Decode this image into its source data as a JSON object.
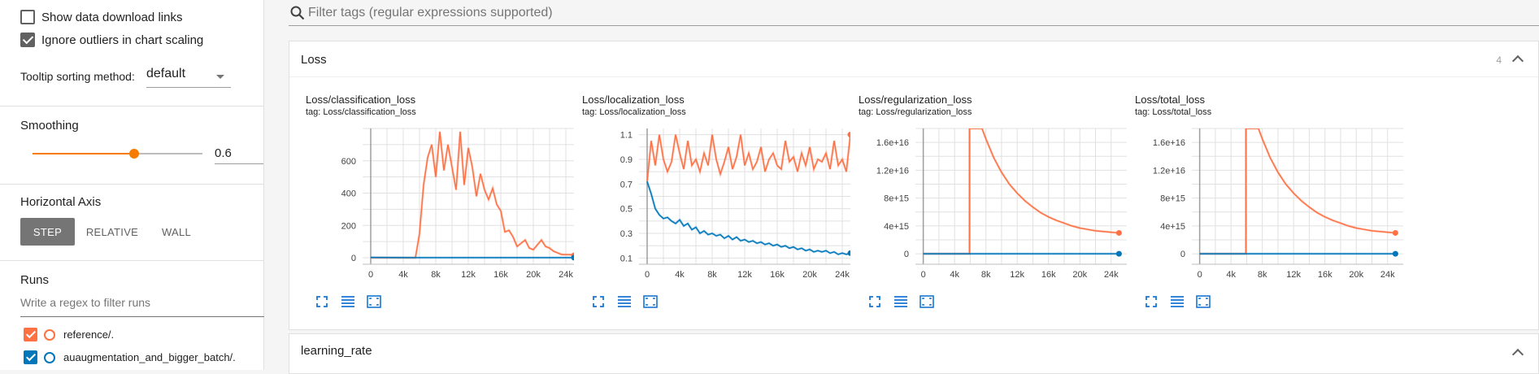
{
  "sidebar": {
    "show_download_links": "Show data download links",
    "ignore_outliers": "Ignore outliers in chart scaling",
    "tooltip_label": "Tooltip sorting method:",
    "tooltip_value": "default",
    "smoothing_title": "Smoothing",
    "smoothing_value": "0.6",
    "smoothing_fraction": 0.6,
    "axis_title": "Horizontal Axis",
    "axis_step": "STEP",
    "axis_relative": "RELATIVE",
    "axis_wall": "WALL",
    "runs_title": "Runs",
    "runs_filter_placeholder": "Write a regex to filter runs",
    "runs": [
      {
        "name": "reference/.",
        "color": "#ff7043"
      },
      {
        "name": "auaugmentation_and_bigger_batch/.",
        "color": "#0077bb"
      }
    ]
  },
  "search": {
    "placeholder": "Filter tags (regular expressions supported)"
  },
  "sections": [
    {
      "title": "Loss",
      "count": "4"
    },
    {
      "title": "learning_rate"
    }
  ],
  "charts": [
    {
      "title": "Loss/classification_loss",
      "tag": "tag: Loss/classification_loss"
    },
    {
      "title": "Loss/localization_loss",
      "tag": "tag: Loss/localization_loss"
    },
    {
      "title": "Loss/regularization_loss",
      "tag": "tag: Loss/regularization_loss"
    },
    {
      "title": "Loss/total_loss",
      "tag": "tag: Loss/total_loss"
    }
  ],
  "chart_data": [
    {
      "type": "line",
      "title": "Loss/classification_loss",
      "xticks": [
        "0",
        "4k",
        "8k",
        "12k",
        "16k",
        "20k",
        "24k"
      ],
      "yticks": [
        "0",
        "200",
        "400",
        "600"
      ],
      "xlim": [
        -1000,
        25000
      ],
      "ylim": [
        -40,
        800
      ],
      "series": [
        {
          "name": "reference/.",
          "color": "#ff7043",
          "x": [
            0,
            2000,
            4000,
            5500,
            6000,
            6500,
            7000,
            7500,
            8000,
            8500,
            9000,
            9500,
            10000,
            10500,
            11000,
            11500,
            12000,
            12500,
            13000,
            13500,
            14000,
            14500,
            15000,
            15500,
            16000,
            16500,
            17000,
            17500,
            18000,
            18500,
            19000,
            19500,
            20000,
            20500,
            21000,
            21500,
            22000,
            22500,
            23000,
            23500,
            24000,
            24500,
            25000
          ],
          "y": [
            0,
            0,
            0,
            0,
            150,
            450,
            620,
            700,
            500,
            780,
            540,
            700,
            560,
            420,
            780,
            450,
            680,
            560,
            380,
            520,
            420,
            360,
            430,
            330,
            290,
            160,
            170,
            130,
            70,
            90,
            110,
            60,
            50,
            80,
            110,
            70,
            60,
            40,
            30,
            20,
            20,
            20,
            15
          ]
        },
        {
          "name": "auaugmentation_and_bigger_batch/.",
          "color": "#0077bb",
          "x": [
            0,
            5000,
            10000,
            15000,
            20000,
            25000
          ],
          "y": [
            2,
            1,
            1,
            1,
            1,
            1
          ]
        }
      ]
    },
    {
      "type": "line",
      "title": "Loss/localization_loss",
      "xticks": [
        "0",
        "4k",
        "8k",
        "12k",
        "16k",
        "20k",
        "24k"
      ],
      "yticks": [
        "0.1",
        "0.3",
        "0.5",
        "0.7",
        "0.9",
        "1.1"
      ],
      "xlim": [
        -1000,
        25000
      ],
      "ylim": [
        0.05,
        1.15
      ],
      "series": [
        {
          "name": "reference/.",
          "color": "#ff7043",
          "x": [
            0,
            500,
            1000,
            1500,
            2000,
            2500,
            3000,
            3500,
            4000,
            4500,
            5000,
            5500,
            6000,
            6500,
            7000,
            7500,
            8000,
            8500,
            9000,
            9500,
            10000,
            10500,
            11000,
            11500,
            12000,
            12500,
            13000,
            13500,
            14000,
            14500,
            15000,
            15500,
            16000,
            16500,
            17000,
            17500,
            18000,
            18500,
            19000,
            19500,
            20000,
            20500,
            21000,
            21500,
            22000,
            22500,
            23000,
            23500,
            24000,
            24500,
            25000
          ],
          "y": [
            0.72,
            1.05,
            0.85,
            1.1,
            0.9,
            0.8,
            0.88,
            1.1,
            0.95,
            0.82,
            1.05,
            0.85,
            0.9,
            0.8,
            0.95,
            0.85,
            1.1,
            0.9,
            0.78,
            0.88,
            1.0,
            0.82,
            0.92,
            1.1,
            0.85,
            0.95,
            0.82,
            0.88,
            1.0,
            0.8,
            0.9,
            0.95,
            0.85,
            0.82,
            1.05,
            0.88,
            0.92,
            0.8,
            0.95,
            0.85,
            1.0,
            0.82,
            0.9,
            0.88,
            0.95,
            0.82,
            1.05,
            0.85,
            0.9,
            0.8,
            1.1
          ]
        },
        {
          "name": "auaugmentation_and_bigger_batch/.",
          "color": "#0077bb",
          "x": [
            0,
            500,
            1000,
            1500,
            2000,
            2500,
            3000,
            3500,
            4000,
            4500,
            5000,
            5500,
            6000,
            6500,
            7000,
            7500,
            8000,
            8500,
            9000,
            9500,
            10000,
            10500,
            11000,
            11500,
            12000,
            12500,
            13000,
            13500,
            14000,
            14500,
            15000,
            15500,
            16000,
            16500,
            17000,
            17500,
            18000,
            18500,
            19000,
            19500,
            20000,
            20500,
            21000,
            21500,
            22000,
            22500,
            23000,
            23500,
            24000,
            24500,
            25000
          ],
          "y": [
            0.72,
            0.62,
            0.5,
            0.45,
            0.42,
            0.43,
            0.4,
            0.38,
            0.41,
            0.36,
            0.38,
            0.33,
            0.35,
            0.3,
            0.32,
            0.29,
            0.3,
            0.28,
            0.29,
            0.26,
            0.28,
            0.25,
            0.27,
            0.24,
            0.25,
            0.23,
            0.24,
            0.22,
            0.23,
            0.21,
            0.22,
            0.2,
            0.21,
            0.19,
            0.2,
            0.18,
            0.19,
            0.17,
            0.18,
            0.16,
            0.17,
            0.15,
            0.16,
            0.15,
            0.16,
            0.14,
            0.15,
            0.13,
            0.14,
            0.13,
            0.14
          ]
        }
      ]
    },
    {
      "type": "line",
      "title": "Loss/regularization_loss",
      "xticks": [
        "0",
        "4k",
        "8k",
        "12k",
        "16k",
        "20k",
        "24k"
      ],
      "yticks": [
        "0",
        "4e+15",
        "8e+15",
        "1.2e+16",
        "1.6e+16"
      ],
      "xlim": [
        -1000,
        26000
      ],
      "ylim": [
        -1500000000000000.0,
        1.8e+16
      ],
      "series": [
        {
          "name": "reference/.",
          "color": "#ff7043",
          "x": [
            0,
            5899,
            5900,
            6000,
            7500,
            8000,
            9000,
            10000,
            11000,
            12000,
            13000,
            14000,
            15000,
            16000,
            17000,
            18000,
            19000,
            20000,
            21000,
            22000,
            23000,
            24000,
            25000
          ],
          "y": [
            0,
            0,
            1.8e+16,
            1.8e+16,
            1.8e+16,
            1.65e+16,
            1.38e+16,
            1.17e+16,
            1e+16,
            8700000000000000.0,
            7600000000000000.0,
            6700000000000000.0,
            5900000000000000.0,
            5300000000000000.0,
            4800000000000000.0,
            4400000000000000.0,
            4000000000000000.0,
            3700000000000000.0,
            3500000000000000.0,
            3300000000000000.0,
            3200000000000000.0,
            3100000000000000.0,
            3000000000000000.0
          ]
        },
        {
          "name": "auaugmentation_and_bigger_batch/.",
          "color": "#0077bb",
          "x": [
            0,
            25000
          ],
          "y": [
            0,
            0
          ]
        }
      ]
    },
    {
      "type": "line",
      "title": "Loss/total_loss",
      "xticks": [
        "0",
        "4k",
        "8k",
        "12k",
        "16k",
        "20k",
        "24k"
      ],
      "yticks": [
        "0",
        "4e+15",
        "8e+15",
        "1.2e+16",
        "1.6e+16"
      ],
      "xlim": [
        -1000,
        26000
      ],
      "ylim": [
        -1500000000000000.0,
        1.8e+16
      ],
      "series": [
        {
          "name": "reference/.",
          "color": "#ff7043",
          "x": [
            0,
            5899,
            5900,
            6000,
            7500,
            8000,
            9000,
            10000,
            11000,
            12000,
            13000,
            14000,
            15000,
            16000,
            17000,
            18000,
            19000,
            20000,
            21000,
            22000,
            23000,
            24000,
            25000
          ],
          "y": [
            0,
            0,
            1.8e+16,
            1.8e+16,
            1.8e+16,
            1.65e+16,
            1.38e+16,
            1.17e+16,
            1e+16,
            8700000000000000.0,
            7600000000000000.0,
            6700000000000000.0,
            5900000000000000.0,
            5300000000000000.0,
            4800000000000000.0,
            4400000000000000.0,
            4000000000000000.0,
            3700000000000000.0,
            3500000000000000.0,
            3300000000000000.0,
            3200000000000000.0,
            3100000000000000.0,
            3000000000000000.0
          ]
        },
        {
          "name": "auaugmentation_and_bigger_batch/.",
          "color": "#0077bb",
          "x": [
            0,
            25000
          ],
          "y": [
            0,
            0
          ]
        }
      ]
    }
  ]
}
